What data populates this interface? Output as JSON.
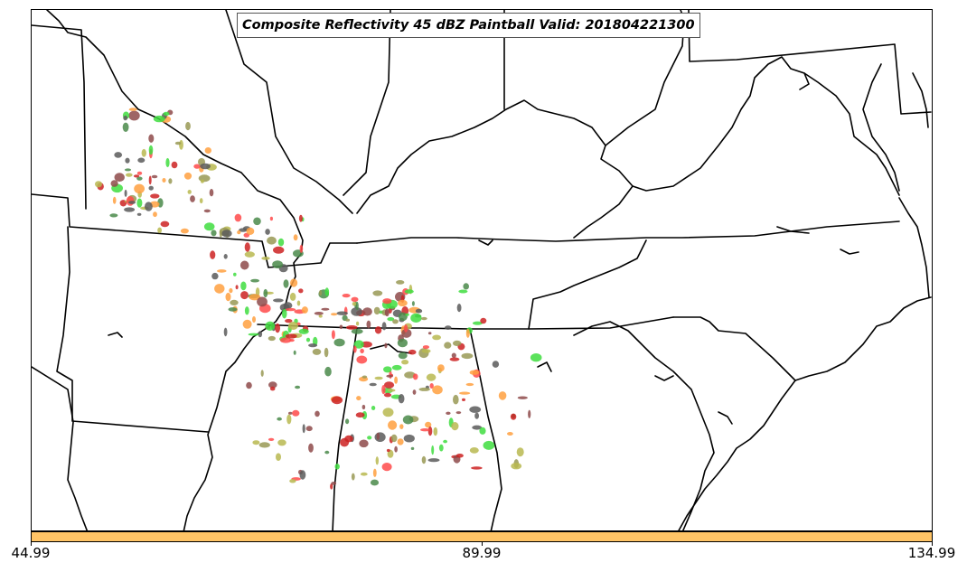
{
  "title": "Composite Reflectivity 45 dBZ Paintball Valid: 201804221300",
  "colorbar": {
    "color": "#ffc466",
    "ticks": [
      "44.99",
      "89.99",
      "134.99"
    ]
  },
  "colors": {
    "border": "#000000",
    "member_palette": [
      "#5a5a5a",
      "#8e4a4a",
      "#ff4a4a",
      "#ffa040",
      "#b8b850",
      "#40dd40",
      "#4a8a4a",
      "#999955",
      "#cc2222"
    ]
  }
}
